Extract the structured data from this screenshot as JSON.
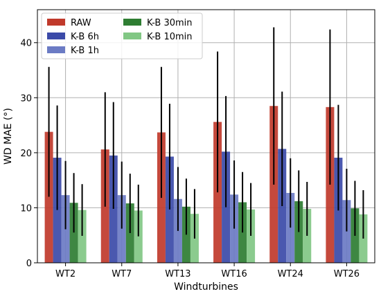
{
  "chart_data": {
    "type": "bar",
    "xlabel": "Windturbines",
    "ylabel": "WD MAE (°)",
    "ylim": [
      0,
      46
    ],
    "yticks": [
      0,
      10,
      20,
      30,
      40
    ],
    "grid": true,
    "legend_position": "top-left",
    "legend_columns": 2,
    "categories": [
      "WT2",
      "WT7",
      "WT13",
      "WT16",
      "WT24",
      "WT26"
    ],
    "series": [
      {
        "name": "RAW",
        "color": "#c0392b",
        "values": [
          23.8,
          20.6,
          23.7,
          25.6,
          28.5,
          28.3
        ],
        "error": [
          11.8,
          10.4,
          11.9,
          12.8,
          14.3,
          14.1
        ]
      },
      {
        "name": "K-B 6h",
        "color": "#3b4aa8",
        "values": [
          19.1,
          19.5,
          19.3,
          20.2,
          20.7,
          19.1
        ],
        "error": [
          9.5,
          9.7,
          9.6,
          10.1,
          10.4,
          9.6
        ]
      },
      {
        "name": "K-B 1h",
        "color": "#6b7bc4",
        "values": [
          12.3,
          12.3,
          11.6,
          12.4,
          12.7,
          11.4
        ],
        "error": [
          6.2,
          6.1,
          5.8,
          6.2,
          6.3,
          5.7
        ]
      },
      {
        "name": "K-B 30min",
        "color": "#2e7d32",
        "values": [
          10.9,
          10.8,
          10.2,
          11.0,
          11.2,
          9.9
        ],
        "error": [
          5.4,
          5.4,
          5.1,
          5.5,
          5.6,
          5.0
        ]
      },
      {
        "name": "K-B 10min",
        "color": "#81c784",
        "values": [
          9.6,
          9.5,
          8.9,
          9.7,
          9.8,
          8.8
        ],
        "error": [
          4.7,
          4.7,
          4.5,
          4.8,
          4.9,
          4.4
        ]
      }
    ]
  }
}
